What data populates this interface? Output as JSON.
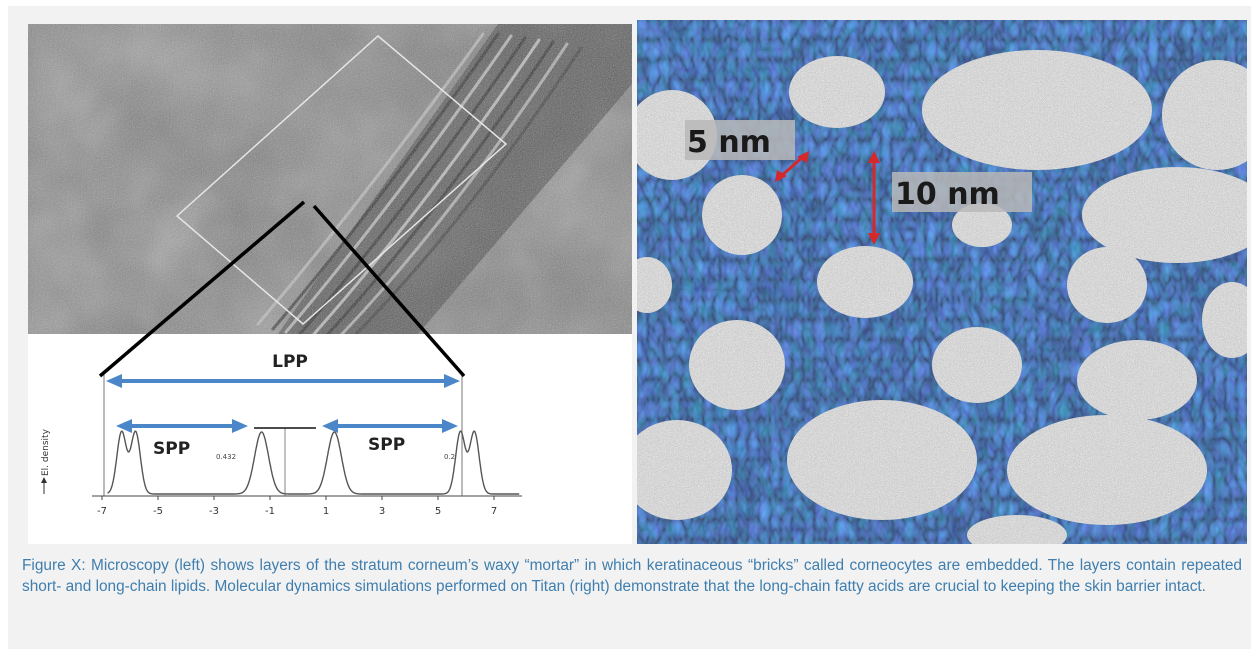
{
  "left_panel": {
    "profile": {
      "lpp_label": "LPP",
      "spp_label_left": "SPP",
      "spp_label_right": "SPP",
      "ylabel": "El. density",
      "peak_label_left": "0.432",
      "peak_label_right": "0.2",
      "x_ticks": [
        "-7",
        "-5",
        "-3",
        "-1",
        "1",
        "3",
        "5",
        "7"
      ]
    }
  },
  "right_panel": {
    "label_5nm": "5 nm",
    "label_10nm": "10 nm",
    "arrow_color": "#d62828"
  },
  "caption": {
    "text": "Figure X: Microscopy (left) shows layers of the stratum corneum’s waxy “mortar” in which keratinaceous “bricks” called corneocytes are embedded. The layers contain repeated short- and long-chain lipids. Molecular dynamics simulations performed on Titan (right) demonstrate that the long-chain fatty acids are crucial to keeping the skin barrier intact."
  },
  "colors": {
    "caption_text": "#3f7eae",
    "dimension_arrow": "#4a86c8",
    "background": "#f2f2f2"
  }
}
